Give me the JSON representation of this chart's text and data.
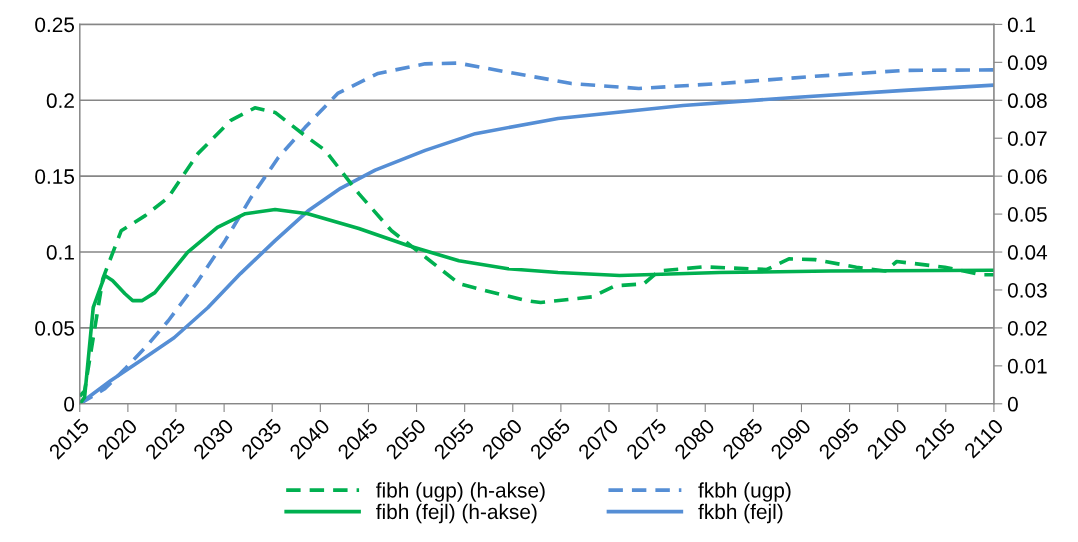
{
  "chart_data": {
    "type": "line",
    "xlim": [
      2015,
      2110
    ],
    "xticks": [
      2015,
      2020,
      2025,
      2030,
      2035,
      2040,
      2045,
      2050,
      2055,
      2060,
      2065,
      2070,
      2075,
      2080,
      2085,
      2090,
      2095,
      2100,
      2105,
      2110
    ],
    "ylim": [
      0,
      0.25
    ],
    "yticks": [
      0,
      0.05,
      0.1,
      0.15,
      0.2,
      0.25
    ],
    "y2lim": [
      0,
      0.1
    ],
    "y2ticks": [
      0,
      0.01,
      0.02,
      0.03,
      0.04,
      0.05,
      0.06,
      0.07,
      0.08,
      0.09,
      0.1
    ],
    "grid": "y",
    "legend": "bottom",
    "marker": "none",
    "series": [
      {
        "name": "fibh (ugp) (h-akse)",
        "color": "#00b050",
        "axis": "y2",
        "line_style": "dashed",
        "x": [
          2015,
          2015.5,
          2017.4,
          2019.3,
          2021.8,
          2024.2,
          2027.3,
          2030.7,
          2033.2,
          2035.3,
          2038.4,
          2040.5,
          2044,
          2047.4,
          2051,
          2054.4,
          2057.2,
          2061.4,
          2062.9,
          2068.3,
          2070.6,
          2073.6,
          2075.2,
          2079.9,
          2086.4,
          2088.7,
          2091.4,
          2095.7,
          2098.7,
          2099.9,
          2104.9,
          2108.8,
          2110
        ],
        "values": [
          0.002,
          0.0034,
          0.033,
          0.0456,
          0.0496,
          0.0544,
          0.066,
          0.0747,
          0.078,
          0.0768,
          0.0707,
          0.0668,
          0.0554,
          0.0456,
          0.0385,
          0.0317,
          0.0298,
          0.0272,
          0.0267,
          0.0282,
          0.0311,
          0.0316,
          0.035,
          0.0361,
          0.0354,
          0.0382,
          0.038,
          0.036,
          0.035,
          0.0375,
          0.036,
          0.034,
          0.034
        ]
      },
      {
        "name": "fibh (fejl) (h-akse)",
        "color": "#00b050",
        "axis": "y2",
        "line_style": "solid",
        "x": [
          2015,
          2015.5,
          2016.4,
          2017.6,
          2018.4,
          2019.7,
          2020.5,
          2021.5,
          2022.8,
          2026.2,
          2029.3,
          2032.2,
          2035.3,
          2038.7,
          2044,
          2049.1,
          2054.4,
          2059.5,
          2064.7,
          2071.1,
          2081.5,
          2093,
          2110
        ],
        "values": [
          0,
          0.0017,
          0.0254,
          0.0338,
          0.0325,
          0.029,
          0.0272,
          0.0272,
          0.0293,
          0.0399,
          0.0465,
          0.0501,
          0.0512,
          0.0501,
          0.0462,
          0.0417,
          0.0377,
          0.0356,
          0.0346,
          0.0338,
          0.0346,
          0.035,
          0.0352
        ]
      },
      {
        "name": "fkbh (ugp)",
        "color": "#558ed5",
        "line_style": "dashed",
        "x": [
          2015,
          2017.6,
          2019.7,
          2021.8,
          2024.2,
          2027.3,
          2030.1,
          2032.8,
          2035.6,
          2038.4,
          2041.8,
          2046,
          2050.9,
          2054.3,
          2059.5,
          2064.4,
          2066.1,
          2073.1,
          2081.5,
          2091.2,
          2100.7,
          2110
        ],
        "values": [
          0,
          0.0099,
          0.023,
          0.037,
          0.0547,
          0.081,
          0.1075,
          0.136,
          0.162,
          0.182,
          0.2045,
          0.2177,
          0.224,
          0.2245,
          0.2185,
          0.213,
          0.211,
          0.2078,
          0.211,
          0.2157,
          0.2197,
          0.22
        ]
      },
      {
        "name": "fkbh (fejl)",
        "color": "#558ed5",
        "line_style": "solid",
        "x": [
          2015,
          2018.2,
          2021.3,
          2024.8,
          2028.3,
          2031.7,
          2035.3,
          2038.7,
          2042.1,
          2045.7,
          2050.9,
          2056.1,
          2064.7,
          2077.7,
          2089.2,
          2100.7,
          2110
        ],
        "values": [
          0,
          0.0152,
          0.0284,
          0.0435,
          0.0633,
          0.0858,
          0.1075,
          0.127,
          0.142,
          0.154,
          0.167,
          0.178,
          0.188,
          0.1966,
          0.2018,
          0.2065,
          0.21
        ]
      }
    ]
  }
}
